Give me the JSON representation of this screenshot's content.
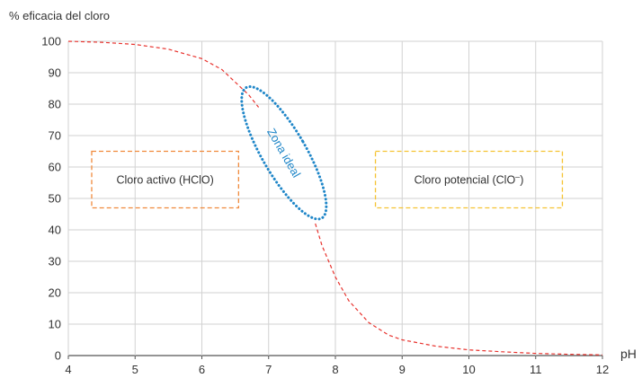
{
  "chart_data": {
    "type": "line",
    "ylabel": "% eficacia del cloro",
    "xlabel": "pH",
    "xlim": [
      4,
      12
    ],
    "ylim": [
      0,
      100
    ],
    "x_ticks": [
      "4",
      "5",
      "6",
      "7",
      "8",
      "9",
      "10",
      "11",
      "12"
    ],
    "y_ticks": [
      "0",
      "10",
      "20",
      "30",
      "40",
      "50",
      "60",
      "70",
      "80",
      "90",
      "100"
    ],
    "grid": true,
    "series": [
      {
        "color": "#e8322d",
        "style": "dashed",
        "points": [
          [
            4.0,
            100
          ],
          [
            4.5,
            99.7
          ],
          [
            5.0,
            99
          ],
          [
            5.5,
            97.5
          ],
          [
            6.0,
            94.5
          ],
          [
            6.3,
            91
          ],
          [
            6.5,
            87
          ],
          [
            6.7,
            83
          ],
          [
            6.85,
            79
          ],
          [
            7.7,
            42
          ],
          [
            7.8,
            35
          ],
          [
            8.0,
            25
          ],
          [
            8.2,
            17.5
          ],
          [
            8.5,
            10.5
          ],
          [
            8.8,
            6.5
          ],
          [
            9.0,
            5
          ],
          [
            9.5,
            3
          ],
          [
            10.0,
            1.8
          ],
          [
            10.5,
            1.2
          ],
          [
            11.0,
            0.7
          ],
          [
            11.5,
            0.4
          ],
          [
            12.0,
            0.2
          ]
        ]
      }
    ],
    "annotations": {
      "active": {
        "text": "Cloro activo (HClO)",
        "color": "#f08a3c",
        "x_range": [
          4.35,
          6.55
        ],
        "y_range": [
          47,
          65
        ]
      },
      "potential": {
        "text": "Cloro potencial  (ClO",
        "sup": "–",
        "close": ")",
        "color": "#f5c333",
        "x_range": [
          8.6,
          11.4
        ],
        "y_range": [
          47,
          65
        ]
      },
      "ideal": {
        "text": "Zona ideal",
        "color": "#1f86c8",
        "center": [
          7.23,
          64.5
        ],
        "rx_ph": 0.33,
        "ry_val": 24,
        "rotation_deg": -30
      }
    }
  }
}
